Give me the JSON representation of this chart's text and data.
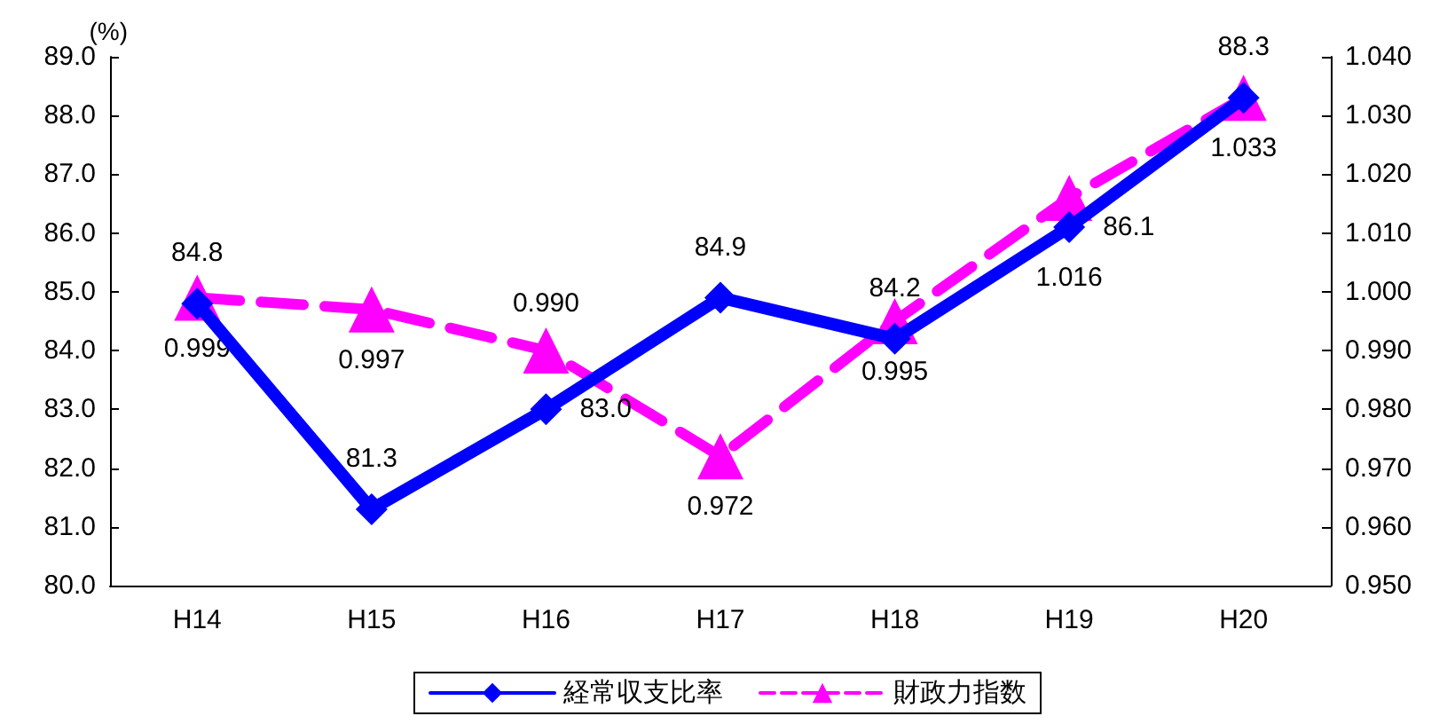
{
  "chart_data": {
    "type": "line",
    "ylabel": "(%)",
    "categories": [
      "H14",
      "H15",
      "H16",
      "H17",
      "H18",
      "H19",
      "H20"
    ],
    "series": [
      {
        "name": "経常収支比率",
        "color": "#0000ff",
        "values": [
          84.8,
          81.3,
          83.0,
          84.9,
          84.2,
          86.1,
          88.3
        ],
        "marker": "diamond",
        "line_style": "solid",
        "value_labels": [
          "84.8",
          "81.3",
          "83.0",
          "84.9",
          "84.2",
          "86.1",
          "88.3"
        ]
      },
      {
        "name": "財政力指数",
        "color": "#ff00ff",
        "axis": "y2",
        "values": [
          0.999,
          0.997,
          0.99,
          0.972,
          0.995,
          1.016,
          1.033
        ],
        "marker": "triangle",
        "line_style": "dashed",
        "value_labels": [
          "0.999",
          "0.997",
          "0.990",
          "0.972",
          "0.995",
          "1.016",
          "1.033"
        ]
      }
    ],
    "ylim": [
      80,
      89
    ],
    "yticks": [
      {
        "value": 80,
        "label": "80.0"
      },
      {
        "value": 81,
        "label": "81.0"
      },
      {
        "value": 82,
        "label": "82.0"
      },
      {
        "value": 83,
        "label": "83.0"
      },
      {
        "value": 84,
        "label": "84.0"
      },
      {
        "value": 85,
        "label": "85.0"
      },
      {
        "value": 86,
        "label": "86.0"
      },
      {
        "value": 87,
        "label": "87.0"
      },
      {
        "value": 88,
        "label": "88.0"
      },
      {
        "value": 89,
        "label": "89.0"
      }
    ],
    "y2lim": [
      0.95,
      1.04
    ],
    "y2ticks": [
      {
        "value": 0.95,
        "label": "0.950"
      },
      {
        "value": 0.96,
        "label": "0.960"
      },
      {
        "value": 0.97,
        "label": "0.970"
      },
      {
        "value": 0.98,
        "label": "0.980"
      },
      {
        "value": 0.99,
        "label": "0.990"
      },
      {
        "value": 1.0,
        "label": "1.000"
      },
      {
        "value": 1.01,
        "label": "1.010"
      },
      {
        "value": 1.02,
        "label": "1.020"
      },
      {
        "value": 1.03,
        "label": "1.030"
      },
      {
        "value": 1.04,
        "label": "1.040"
      }
    ],
    "grid": false,
    "legend": "bottom"
  }
}
